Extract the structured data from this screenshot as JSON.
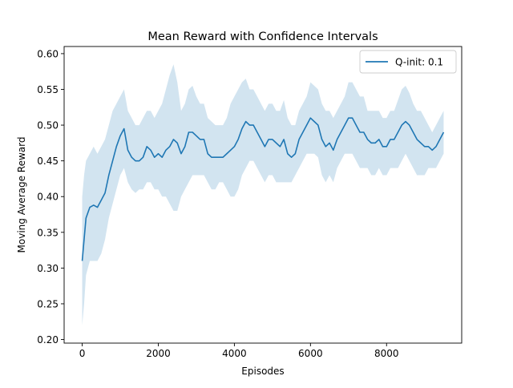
{
  "chart_data": {
    "type": "line",
    "title": "Mean Reward with Confidence Intervals",
    "xlabel": "Episodes",
    "ylabel": "Moving Average Reward",
    "xlim": [
      -475,
      9975
    ],
    "ylim": [
      0.195,
      0.61
    ],
    "xticks": [
      0,
      2000,
      4000,
      6000,
      8000
    ],
    "xtick_labels": [
      "0",
      "2000",
      "4000",
      "6000",
      "8000"
    ],
    "yticks": [
      0.2,
      0.25,
      0.3,
      0.35,
      0.4,
      0.45,
      0.5,
      0.55,
      0.6
    ],
    "ytick_labels": [
      "0.20",
      "0.25",
      "0.30",
      "0.35",
      "0.40",
      "0.45",
      "0.50",
      "0.55",
      "0.60"
    ],
    "grid": false,
    "legend_position": "top-right",
    "series": [
      {
        "name": "Q-init: 0.1",
        "color": "#1f77b4",
        "band_color": "#1f77b4",
        "band_opacity": 0.2,
        "x": [
          0,
          50,
          100,
          200,
          300,
          400,
          500,
          600,
          700,
          800,
          900,
          1000,
          1100,
          1200,
          1300,
          1400,
          1500,
          1600,
          1700,
          1800,
          1900,
          2000,
          2100,
          2200,
          2300,
          2400,
          2500,
          2600,
          2700,
          2800,
          2900,
          3000,
          3100,
          3200,
          3300,
          3400,
          3500,
          3600,
          3700,
          3800,
          3900,
          4000,
          4100,
          4200,
          4300,
          4400,
          4500,
          4600,
          4700,
          4800,
          4900,
          5000,
          5100,
          5200,
          5300,
          5400,
          5500,
          5600,
          5700,
          5800,
          5900,
          6000,
          6100,
          6200,
          6300,
          6400,
          6500,
          6600,
          6700,
          6800,
          6900,
          7000,
          7100,
          7200,
          7300,
          7400,
          7500,
          7600,
          7700,
          7800,
          7900,
          8000,
          8100,
          8200,
          8300,
          8400,
          8500,
          8600,
          8700,
          8800,
          8900,
          9000,
          9100,
          9200,
          9300,
          9400,
          9500
        ],
        "mean": [
          0.31,
          0.34,
          0.37,
          0.385,
          0.388,
          0.385,
          0.395,
          0.405,
          0.43,
          0.45,
          0.47,
          0.485,
          0.495,
          0.465,
          0.455,
          0.45,
          0.45,
          0.455,
          0.47,
          0.465,
          0.455,
          0.46,
          0.455,
          0.465,
          0.47,
          0.48,
          0.475,
          0.46,
          0.47,
          0.49,
          0.49,
          0.485,
          0.48,
          0.48,
          0.46,
          0.455,
          0.455,
          0.455,
          0.455,
          0.46,
          0.465,
          0.47,
          0.48,
          0.495,
          0.505,
          0.5,
          0.5,
          0.49,
          0.48,
          0.47,
          0.48,
          0.48,
          0.475,
          0.47,
          0.48,
          0.46,
          0.455,
          0.46,
          0.48,
          0.49,
          0.5,
          0.51,
          0.505,
          0.5,
          0.48,
          0.47,
          0.475,
          0.465,
          0.48,
          0.49,
          0.5,
          0.51,
          0.51,
          0.5,
          0.49,
          0.49,
          0.48,
          0.475,
          0.475,
          0.48,
          0.47,
          0.47,
          0.48,
          0.48,
          0.49,
          0.5,
          0.505,
          0.5,
          0.49,
          0.48,
          0.475,
          0.47,
          0.47,
          0.465,
          0.47,
          0.48,
          0.49
        ],
        "lower": [
          0.22,
          0.25,
          0.29,
          0.31,
          0.31,
          0.31,
          0.32,
          0.34,
          0.37,
          0.39,
          0.41,
          0.43,
          0.44,
          0.42,
          0.41,
          0.405,
          0.41,
          0.41,
          0.42,
          0.42,
          0.41,
          0.41,
          0.4,
          0.4,
          0.39,
          0.38,
          0.38,
          0.4,
          0.41,
          0.42,
          0.43,
          0.43,
          0.43,
          0.43,
          0.42,
          0.41,
          0.41,
          0.42,
          0.42,
          0.41,
          0.4,
          0.4,
          0.41,
          0.43,
          0.44,
          0.45,
          0.45,
          0.44,
          0.43,
          0.42,
          0.43,
          0.43,
          0.42,
          0.42,
          0.42,
          0.42,
          0.42,
          0.43,
          0.44,
          0.45,
          0.46,
          0.46,
          0.46,
          0.455,
          0.43,
          0.42,
          0.43,
          0.42,
          0.44,
          0.45,
          0.46,
          0.46,
          0.46,
          0.45,
          0.44,
          0.44,
          0.44,
          0.43,
          0.43,
          0.44,
          0.43,
          0.43,
          0.44,
          0.44,
          0.44,
          0.45,
          0.46,
          0.45,
          0.44,
          0.43,
          0.43,
          0.43,
          0.44,
          0.44,
          0.44,
          0.45,
          0.46
        ],
        "upper": [
          0.4,
          0.43,
          0.45,
          0.46,
          0.47,
          0.46,
          0.47,
          0.48,
          0.5,
          0.52,
          0.53,
          0.54,
          0.55,
          0.52,
          0.51,
          0.5,
          0.5,
          0.51,
          0.52,
          0.52,
          0.51,
          0.52,
          0.53,
          0.55,
          0.57,
          0.585,
          0.56,
          0.52,
          0.53,
          0.55,
          0.555,
          0.54,
          0.53,
          0.53,
          0.51,
          0.505,
          0.5,
          0.5,
          0.5,
          0.51,
          0.53,
          0.54,
          0.55,
          0.56,
          0.565,
          0.55,
          0.55,
          0.54,
          0.53,
          0.52,
          0.53,
          0.53,
          0.52,
          0.52,
          0.535,
          0.51,
          0.5,
          0.5,
          0.52,
          0.53,
          0.54,
          0.56,
          0.555,
          0.55,
          0.53,
          0.52,
          0.52,
          0.51,
          0.52,
          0.53,
          0.54,
          0.56,
          0.56,
          0.55,
          0.54,
          0.54,
          0.52,
          0.52,
          0.52,
          0.52,
          0.51,
          0.51,
          0.52,
          0.52,
          0.535,
          0.55,
          0.555,
          0.545,
          0.53,
          0.52,
          0.52,
          0.51,
          0.5,
          0.49,
          0.5,
          0.51,
          0.52
        ]
      }
    ]
  }
}
